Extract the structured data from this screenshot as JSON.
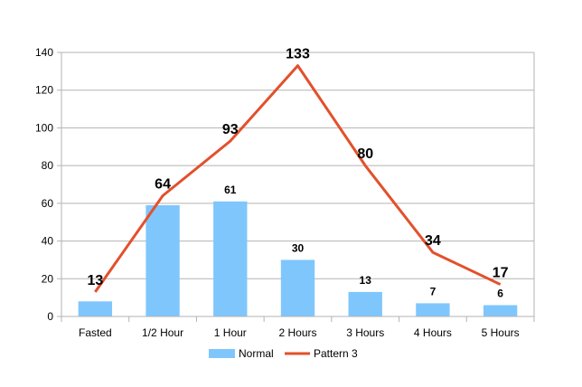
{
  "chart_data": {
    "type": "bar",
    "categories": [
      "Fasted",
      "1/2 Hour",
      "1 Hour",
      "2 Hours",
      "3 Hours",
      "4 Hours",
      "5 Hours"
    ],
    "ylim": [
      0,
      140
    ],
    "yticks": [
      0,
      20,
      40,
      60,
      80,
      100,
      120,
      140
    ],
    "grid": true,
    "legend_position": "bottom",
    "series": [
      {
        "name": "Normal",
        "kind": "bar",
        "color": "#7fc6fc",
        "values": [
          8,
          59,
          61,
          30,
          13,
          7,
          6
        ],
        "labels": [
          "",
          "",
          "61",
          "30",
          "13",
          "7",
          "6"
        ]
      },
      {
        "name": "Pattern 3",
        "kind": "line",
        "color": "#e3502b",
        "values": [
          13,
          64,
          93,
          133,
          80,
          34,
          17
        ],
        "labels": [
          "13",
          "64",
          "93",
          "133",
          "80",
          "34",
          "17"
        ]
      }
    ]
  }
}
